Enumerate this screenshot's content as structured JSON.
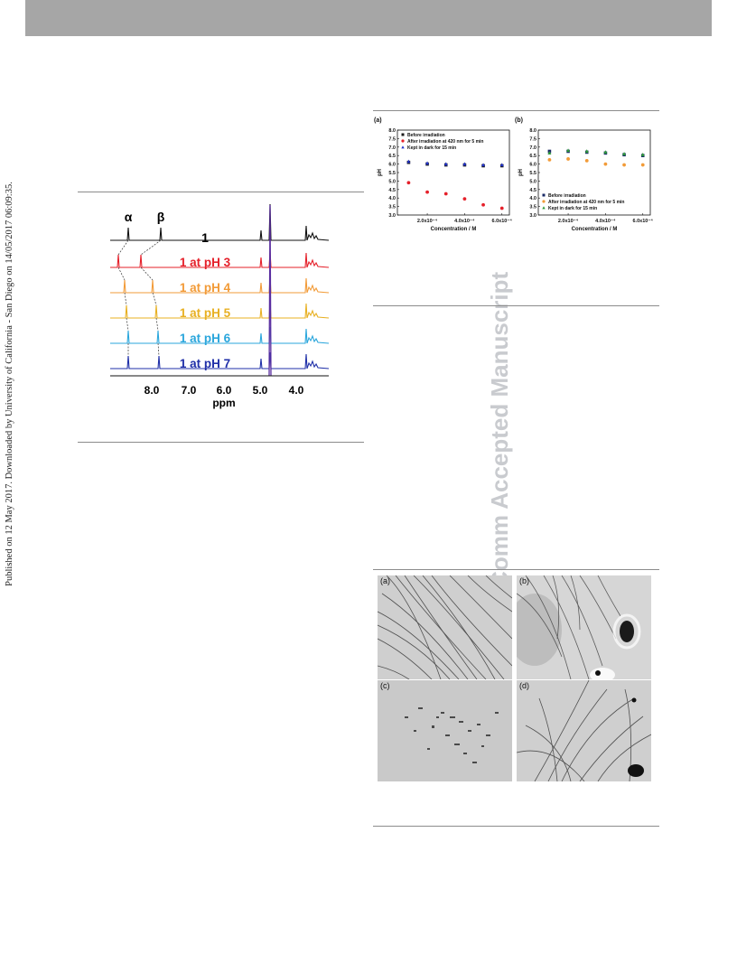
{
  "side_note": "Published on 12 May 2017. Downloaded by University of California - San Diego on 14/05/2017 06:09:35.",
  "watermark": "ChemComm Accepted Manuscript",
  "nmr": {
    "peak_labels": [
      "α",
      "β"
    ],
    "top_label": "1",
    "traces": [
      {
        "label": "1 at pH 3",
        "color": "#e5202a"
      },
      {
        "label": "1 at pH 4",
        "color": "#f29b38"
      },
      {
        "label": "1 at pH 5",
        "color": "#e8b022"
      },
      {
        "label": "1 at pH 6",
        "color": "#2aa6dc"
      },
      {
        "label": "1 at pH 7",
        "color": "#1f2fa8"
      }
    ],
    "x_ticks": [
      "8.0",
      "7.0",
      "6.0",
      "5.0",
      "4.0"
    ],
    "x_label": "ppm"
  },
  "chart_data": [
    {
      "type": "scatter",
      "panel": "(a)",
      "xlabel": "Concentration / M",
      "ylabel": "pH",
      "ylim": [
        3.0,
        8.0
      ],
      "y_ticks": [
        "8.0",
        "7.5",
        "7.0",
        "6.5",
        "6.0",
        "5.5",
        "5.0",
        "4.5",
        "4.0",
        "3.5",
        "3.0"
      ],
      "x_ticks": [
        "2.0x10⁻⁴",
        "4.0x10⁻⁴",
        "6.0x10⁻⁴"
      ],
      "legend_position": "top-left",
      "series": [
        {
          "name": "Before irradiation",
          "color": "#1a1a1a",
          "marker": "square",
          "x": [
            0.0001,
            0.0002,
            0.0003,
            0.0004,
            0.0005,
            0.0006
          ],
          "y": [
            6.1,
            6.0,
            5.95,
            5.95,
            5.9,
            5.9
          ]
        },
        {
          "name": "After irradiation at 420 nm for 5 min",
          "color": "#e5202a",
          "marker": "circle",
          "x": [
            0.0001,
            0.0002,
            0.0003,
            0.0004,
            0.0005,
            0.0006
          ],
          "y": [
            4.9,
            4.35,
            4.25,
            3.95,
            3.6,
            3.4
          ]
        },
        {
          "name": "Kept in dark for 15 min",
          "color": "#2233cc",
          "marker": "triangle",
          "x": [
            0.0001,
            0.0002,
            0.0003,
            0.0004,
            0.0005,
            0.0006
          ],
          "y": [
            6.15,
            6.05,
            6.0,
            6.0,
            5.95,
            5.95
          ]
        }
      ]
    },
    {
      "type": "scatter",
      "panel": "(b)",
      "xlabel": "Concentration / M",
      "ylabel": "pH",
      "ylim": [
        3.0,
        8.0
      ],
      "y_ticks": [
        "8.0",
        "7.5",
        "7.0",
        "6.5",
        "6.0",
        "5.5",
        "5.0",
        "4.5",
        "4.0",
        "3.5",
        "3.0"
      ],
      "x_ticks": [
        "2.0x10⁻⁴",
        "4.0x10⁻⁴",
        "6.0x10⁻⁴"
      ],
      "legend_position": "bottom-left",
      "series": [
        {
          "name": "Before irradiation",
          "color": "#1a2a66",
          "marker": "square",
          "x": [
            0.0001,
            0.0002,
            0.0003,
            0.0004,
            0.0005,
            0.0006
          ],
          "y": [
            6.75,
            6.75,
            6.7,
            6.65,
            6.55,
            6.5
          ]
        },
        {
          "name": "After irradiation at 420 nm for 5 min",
          "color": "#f29b38",
          "marker": "circle",
          "x": [
            0.0001,
            0.0002,
            0.0003,
            0.0004,
            0.0005,
            0.0006
          ],
          "y": [
            6.25,
            6.3,
            6.2,
            6.0,
            5.95,
            5.95
          ]
        },
        {
          "name": "Kept in dark for 15 min",
          "color": "#2e9a3a",
          "marker": "triangle",
          "x": [
            0.0001,
            0.0002,
            0.0003,
            0.0004,
            0.0005,
            0.0006
          ],
          "y": [
            6.65,
            6.8,
            6.75,
            6.7,
            6.6,
            6.55
          ]
        }
      ]
    }
  ],
  "tem_panels": [
    "(a)",
    "(b)",
    "(c)",
    "(d)"
  ]
}
